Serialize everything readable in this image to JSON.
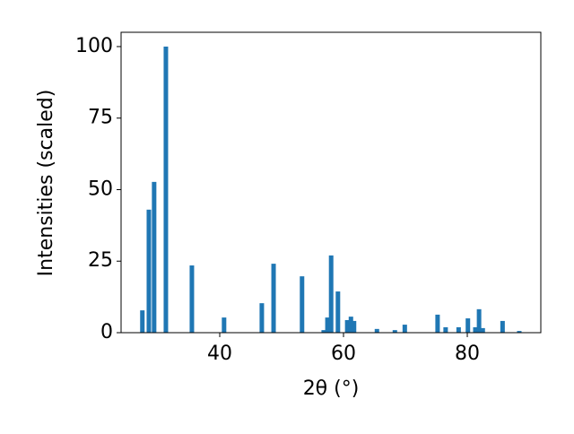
{
  "chart_data": {
    "type": "bar",
    "xlabel": "2θ (°)",
    "ylabel": "Intensities (scaled)",
    "x": [
      27.5,
      28.55,
      29.4,
      31.3,
      35.5,
      40.7,
      46.8,
      48.7,
      53.3,
      56.8,
      57.4,
      58.0,
      59.1,
      60.6,
      61.2,
      61.7,
      65.4,
      68.3,
      69.9,
      75.2,
      76.5,
      78.6,
      80.1,
      81.3,
      81.9,
      82.5,
      85.7,
      88.4
    ],
    "values": [
      7.8,
      43,
      52.7,
      100,
      23.5,
      5.3,
      10.3,
      24.1,
      19.7,
      0.9,
      5.3,
      27,
      14.4,
      4.4,
      5.6,
      4.1,
      1.3,
      0.9,
      2.8,
      6.3,
      1.9,
      1.9,
      5,
      1.9,
      8.2,
      1.6,
      4.1,
      0.6
    ],
    "color": "#1f77b4",
    "xlim": [
      24.06,
      91.88
    ],
    "xticks": [
      40,
      60,
      80
    ],
    "ylim": [
      0,
      105
    ],
    "yticks": [
      0,
      25,
      50,
      75,
      100
    ]
  }
}
